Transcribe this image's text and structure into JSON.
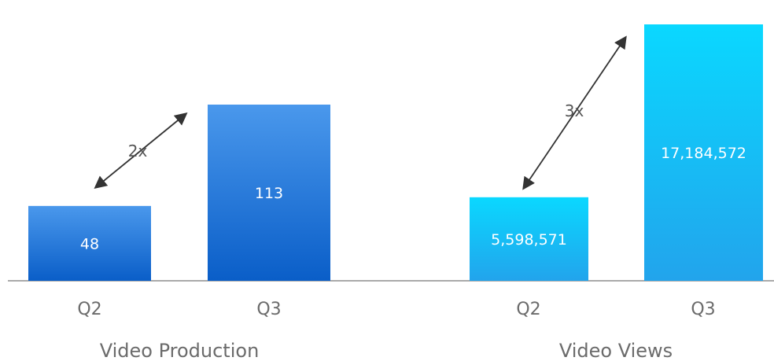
{
  "chart_data": [
    {
      "type": "bar",
      "title": "Video Production",
      "categories": [
        "Q2",
        "Q3"
      ],
      "values": [
        48,
        113
      ],
      "value_labels": [
        "48",
        "113"
      ],
      "multiplier_label": "2x",
      "colors": {
        "top": "#4a98ec",
        "bottom": "#0a5ec8"
      },
      "grid": false,
      "legend": "none"
    },
    {
      "type": "bar",
      "title": "Video Views",
      "categories": [
        "Q2",
        "Q3"
      ],
      "values": [
        5598571,
        17184572
      ],
      "value_labels": [
        "5,598,571",
        "17,184,572"
      ],
      "multiplier_label": "3x",
      "colors": {
        "top": "#0ad8ff",
        "bottom": "#22a4ec"
      },
      "grid": false,
      "legend": "none"
    }
  ],
  "baseline_color": "#aaaaaa",
  "arrow_color": "#333333"
}
